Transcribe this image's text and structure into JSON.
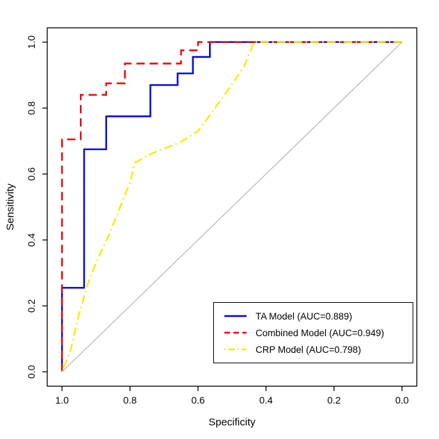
{
  "chart_data": {
    "type": "line",
    "subtype": "roc-curves",
    "title": "",
    "xlabel": "Specificity",
    "ylabel": "Sensitivity",
    "x_ticks": [
      "1.0",
      "0.8",
      "0.6",
      "0.4",
      "0.2",
      "0.0"
    ],
    "y_ticks": [
      "0.0",
      "0.2",
      "0.4",
      "0.6",
      "0.8",
      "1.0"
    ],
    "xlim": [
      1.0,
      0.0
    ],
    "ylim": [
      0.0,
      1.0
    ],
    "x_axis_reversed": true,
    "grid": false,
    "legend_position": "bottomright",
    "reference_line": {
      "name": "chance-diagonal",
      "color": "#b4b4b4",
      "points": [
        [
          1.0,
          0.0
        ],
        [
          0.0,
          1.0
        ]
      ]
    },
    "series": [
      {
        "name": "TA Model (AUC=0.889)",
        "model": "TA Model",
        "auc": "0.889",
        "color": "#0000ee",
        "line_style": "solid",
        "points": [
          [
            1.0,
            0.0
          ],
          [
            1.0,
            0.255
          ],
          [
            0.935,
            0.255
          ],
          [
            0.935,
            0.675
          ],
          [
            0.87,
            0.675
          ],
          [
            0.87,
            0.775
          ],
          [
            0.74,
            0.775
          ],
          [
            0.74,
            0.87
          ],
          [
            0.66,
            0.87
          ],
          [
            0.66,
            0.905
          ],
          [
            0.615,
            0.905
          ],
          [
            0.615,
            0.955
          ],
          [
            0.565,
            0.955
          ],
          [
            0.565,
            1.0
          ],
          [
            0.0,
            1.0
          ]
        ]
      },
      {
        "name": "Combined Model (AUC=0.949)",
        "model": "Combined Model",
        "auc": "0.949",
        "color": "#ee0000",
        "line_style": "dashed",
        "points": [
          [
            1.0,
            0.0
          ],
          [
            1.0,
            0.705
          ],
          [
            0.945,
            0.705
          ],
          [
            0.945,
            0.84
          ],
          [
            0.87,
            0.84
          ],
          [
            0.87,
            0.875
          ],
          [
            0.815,
            0.875
          ],
          [
            0.815,
            0.935
          ],
          [
            0.65,
            0.935
          ],
          [
            0.65,
            0.975
          ],
          [
            0.6,
            0.975
          ],
          [
            0.6,
            1.0
          ],
          [
            0.0,
            1.0
          ]
        ]
      },
      {
        "name": "CRP Model (AUC=0.798)",
        "model": "CRP Model",
        "auc": "0.798",
        "color": "#f2ee00",
        "line_style": "dotdash",
        "points": [
          [
            1.0,
            0.0
          ],
          [
            0.975,
            0.065
          ],
          [
            0.95,
            0.175
          ],
          [
            0.925,
            0.265
          ],
          [
            0.9,
            0.33
          ],
          [
            0.86,
            0.42
          ],
          [
            0.825,
            0.51
          ],
          [
            0.8,
            0.575
          ],
          [
            0.785,
            0.635
          ],
          [
            0.73,
            0.665
          ],
          [
            0.655,
            0.695
          ],
          [
            0.6,
            0.73
          ],
          [
            0.55,
            0.8
          ],
          [
            0.505,
            0.865
          ],
          [
            0.465,
            0.925
          ],
          [
            0.435,
            1.0
          ],
          [
            0.0,
            1.0
          ]
        ]
      }
    ]
  }
}
